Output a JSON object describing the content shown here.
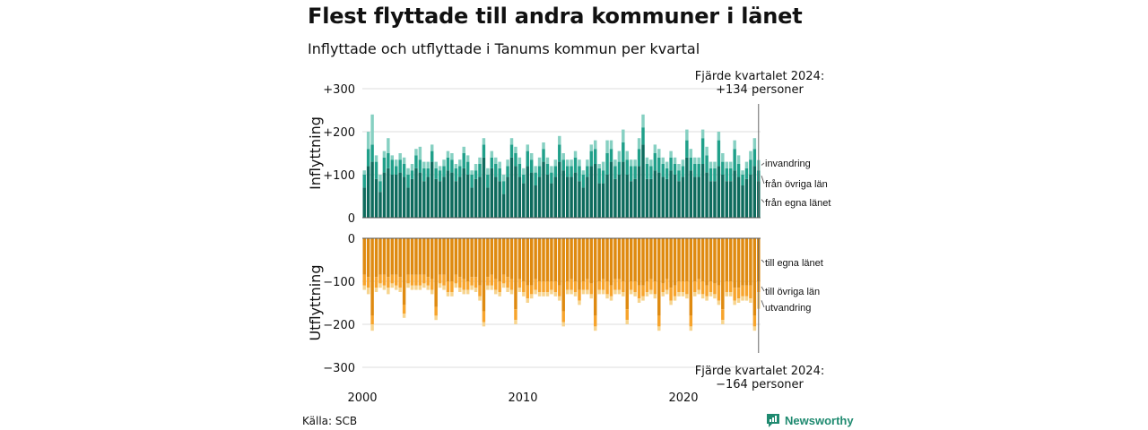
{
  "header": {
    "title": "Flest flyttade till andra kommuner i länet",
    "subtitle": "Inflyttade och utflyttade i Tanums kommun per kvartal"
  },
  "footer": {
    "source": "Källa: SCB",
    "brand": "Newsworthy"
  },
  "colors": {
    "in_local": "#0e6b5d",
    "in_other": "#20a08a",
    "in_immigration": "#86d0c2",
    "out_local": "#df8a10",
    "out_other": "#f7a42c",
    "out_emigration": "#f7d48e",
    "brand": "#1f8a70",
    "grid": "#dddddd"
  },
  "chart_data": [
    {
      "type": "bar",
      "stacked": true,
      "ylabel": "Inflyttning",
      "ylim": [
        0,
        300
      ],
      "yticks": [
        "0",
        "+100",
        "+200",
        "+300"
      ],
      "x_start": "2000 Q1",
      "x_end": "2024 Q4",
      "xticks": [
        "2000",
        "2010",
        "2020"
      ],
      "annotation": {
        "line1": "Fjärde kvartalet 2024:",
        "line2": "+134 personer"
      },
      "series": [
        {
          "name": "från egna länet",
          "values": [
            70,
            120,
            130,
            90,
            60,
            105,
            115,
            100,
            100,
            105,
            95,
            70,
            90,
            115,
            105,
            85,
            95,
            130,
            90,
            85,
            95,
            110,
            105,
            85,
            95,
            115,
            100,
            70,
            90,
            95,
            140,
            70,
            115,
            95,
            85,
            55,
            95,
            140,
            120,
            95,
            80,
            120,
            105,
            75,
            95,
            130,
            100,
            80,
            95,
            130,
            110,
            95,
            95,
            105,
            85,
            70,
            95,
            120,
            125,
            80,
            80,
            100,
            130,
            90,
            100,
            130,
            100,
            85,
            90,
            120,
            170,
            90,
            90,
            110,
            105,
            95,
            90,
            110,
            100,
            85,
            95,
            140,
            110,
            95,
            95,
            125,
            105,
            85,
            85,
            120,
            100,
            85,
            85,
            110,
            95,
            75,
            90,
            100,
            120,
            85
          ]
        },
        {
          "name": "från övriga län",
          "values": [
            30,
            40,
            40,
            40,
            25,
            35,
            35,
            35,
            20,
            30,
            30,
            30,
            20,
            30,
            30,
            30,
            20,
            25,
            25,
            25,
            25,
            30,
            30,
            30,
            25,
            35,
            30,
            30,
            20,
            30,
            30,
            30,
            25,
            30,
            30,
            30,
            25,
            30,
            30,
            30,
            20,
            35,
            30,
            30,
            25,
            30,
            25,
            25,
            25,
            40,
            25,
            25,
            25,
            35,
            35,
            30,
            25,
            35,
            35,
            35,
            30,
            50,
            30,
            30,
            30,
            45,
            35,
            35,
            30,
            40,
            40,
            35,
            30,
            40,
            35,
            30,
            25,
            30,
            25,
            25,
            25,
            40,
            30,
            30,
            30,
            60,
            40,
            30,
            30,
            60,
            30,
            30,
            30,
            50,
            30,
            25,
            25,
            35,
            40,
            25
          ]
        },
        {
          "name": "invandring",
          "values": [
            10,
            40,
            70,
            15,
            15,
            15,
            35,
            10,
            15,
            15,
            15,
            15,
            15,
            15,
            30,
            15,
            15,
            15,
            15,
            10,
            15,
            15,
            15,
            10,
            15,
            15,
            15,
            10,
            15,
            15,
            15,
            15,
            15,
            15,
            15,
            15,
            15,
            15,
            15,
            15,
            15,
            15,
            15,
            15,
            20,
            15,
            15,
            15,
            15,
            20,
            15,
            15,
            15,
            15,
            15,
            10,
            15,
            15,
            20,
            10,
            20,
            30,
            20,
            15,
            25,
            30,
            20,
            15,
            15,
            25,
            30,
            15,
            15,
            20,
            20,
            15,
            15,
            15,
            15,
            15,
            15,
            25,
            20,
            15,
            15,
            20,
            20,
            15,
            15,
            20,
            20,
            15,
            15,
            20,
            20,
            10,
            15,
            20,
            25,
            24
          ]
        }
      ]
    },
    {
      "type": "bar",
      "stacked": true,
      "ylabel": "Utflyttning",
      "ylim": [
        -300,
        0
      ],
      "yticks": [
        "0",
        "−100",
        "−200",
        "−300"
      ],
      "x_start": "2000 Q1",
      "x_end": "2024 Q4",
      "xticks": [
        "2000",
        "2010",
        "2020"
      ],
      "annotation": {
        "line1": "Fjärde kvartalet 2024:",
        "line2": "−164 personer"
      },
      "series": [
        {
          "name": "till egna länet",
          "values": [
            -85,
            -90,
            -180,
            -90,
            -85,
            -85,
            -90,
            -85,
            -85,
            -90,
            -155,
            -85,
            -85,
            -85,
            -85,
            -85,
            -90,
            -95,
            -160,
            -85,
            -85,
            -100,
            -100,
            -85,
            -90,
            -95,
            -100,
            -90,
            -90,
            -110,
            -170,
            -90,
            -85,
            -95,
            -100,
            -85,
            -90,
            -95,
            -165,
            -95,
            -100,
            -110,
            -110,
            -95,
            -100,
            -100,
            -100,
            -100,
            -100,
            -110,
            -170,
            -100,
            -95,
            -100,
            -120,
            -100,
            -95,
            -105,
            -180,
            -100,
            -95,
            -100,
            -110,
            -95,
            -95,
            -100,
            -165,
            -100,
            -100,
            -110,
            -110,
            -100,
            -95,
            -100,
            -180,
            -105,
            -95,
            -115,
            -110,
            -100,
            -100,
            -100,
            -180,
            -100,
            -95,
            -100,
            -110,
            -100,
            -105,
            -110,
            -165,
            -100,
            -100,
            -115,
            -115,
            -110,
            -110,
            -110,
            -180,
            -100
          ]
        },
        {
          "name": "till övriga län",
          "values": [
            -25,
            -25,
            -20,
            -25,
            -20,
            -25,
            -25,
            -20,
            -25,
            -25,
            -20,
            -20,
            -25,
            -25,
            -25,
            -20,
            -20,
            -25,
            -20,
            -20,
            -25,
            -25,
            -25,
            -20,
            -25,
            -25,
            -20,
            -20,
            -25,
            -25,
            -25,
            -20,
            -25,
            -25,
            -25,
            -20,
            -25,
            -25,
            -25,
            -20,
            -25,
            -30,
            -20,
            -25,
            -25,
            -25,
            -25,
            -20,
            -25,
            -25,
            -25,
            -20,
            -25,
            -25,
            -25,
            -20,
            -25,
            -25,
            -25,
            -20,
            -25,
            -30,
            -25,
            -25,
            -25,
            -25,
            -25,
            -20,
            -25,
            -30,
            -25,
            -25,
            -25,
            -30,
            -25,
            -20,
            -25,
            -30,
            -25,
            -25,
            -25,
            -30,
            -25,
            -25,
            -25,
            -30,
            -25,
            -25,
            -25,
            -35,
            -25,
            -25,
            -25,
            -30,
            -25,
            -25,
            -25,
            -30,
            -25,
            -25
          ]
        },
        {
          "name": "utvandring",
          "values": [
            -10,
            -15,
            -15,
            -10,
            -10,
            -10,
            -15,
            -10,
            -10,
            -10,
            -10,
            -10,
            -10,
            -10,
            -10,
            -10,
            -10,
            -10,
            -10,
            -10,
            -10,
            -10,
            -10,
            -10,
            -10,
            -10,
            -10,
            -10,
            -10,
            -10,
            -10,
            -10,
            -10,
            -10,
            -10,
            -10,
            -10,
            -10,
            -10,
            -10,
            -10,
            -10,
            -10,
            -10,
            -10,
            -10,
            -10,
            -10,
            -10,
            -10,
            -10,
            -10,
            -10,
            -10,
            -10,
            -10,
            -10,
            -10,
            -10,
            -10,
            -10,
            -10,
            -10,
            -10,
            -10,
            -10,
            -10,
            -10,
            -10,
            -10,
            -10,
            -10,
            -10,
            -10,
            -10,
            -10,
            -10,
            -10,
            -10,
            -10,
            -10,
            -10,
            -10,
            -10,
            -10,
            -10,
            -10,
            -10,
            -10,
            -10,
            -10,
            -10,
            -10,
            -10,
            -10,
            -10,
            -10,
            -10,
            -10,
            -39
          ]
        }
      ]
    }
  ]
}
